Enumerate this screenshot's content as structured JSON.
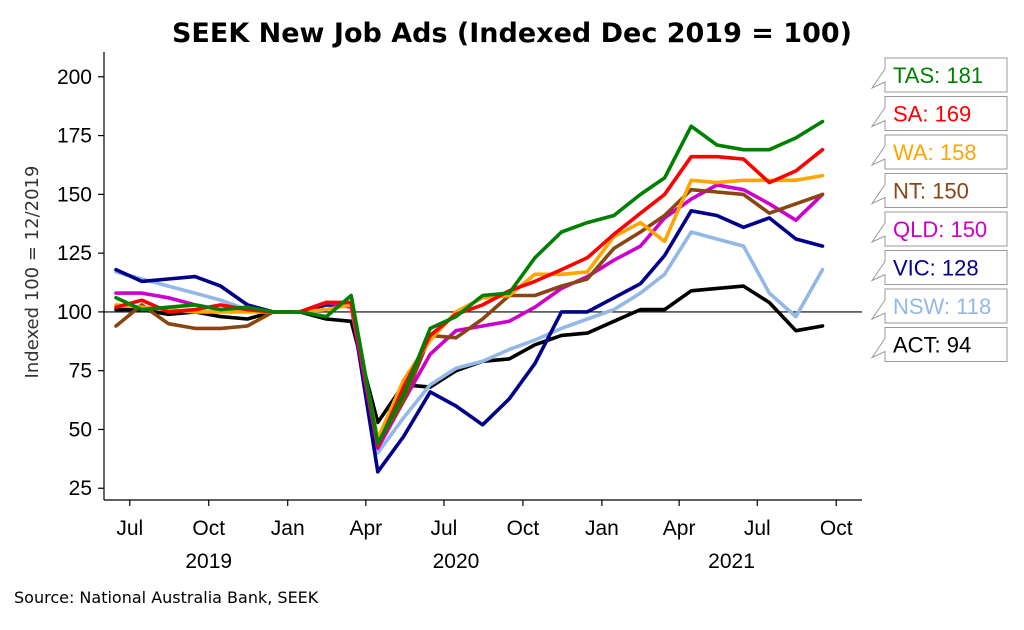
{
  "chart_data": {
    "type": "line",
    "title": "SEEK New Job Ads (Indexed Dec 2019 = 100)",
    "ylabel": "Indexed 100 = 12/2019",
    "ylim": [
      20,
      208
    ],
    "yticks": [
      25,
      50,
      75,
      100,
      125,
      150,
      175,
      200
    ],
    "x_range": [
      "2019-06-01",
      "2021-10-31"
    ],
    "x_ticks": [
      {
        "date": "2019-07-01",
        "label": "Jul"
      },
      {
        "date": "2019-10-01",
        "label": "Oct"
      },
      {
        "date": "2020-01-01",
        "label": "Jan"
      },
      {
        "date": "2020-04-01",
        "label": "Apr"
      },
      {
        "date": "2020-07-01",
        "label": "Jul"
      },
      {
        "date": "2020-10-01",
        "label": "Oct"
      },
      {
        "date": "2021-01-01",
        "label": "Jan"
      },
      {
        "date": "2021-04-01",
        "label": "Apr"
      },
      {
        "date": "2021-07-01",
        "label": "Jul"
      },
      {
        "date": "2021-10-01",
        "label": "Oct"
      }
    ],
    "years": [
      {
        "date": "2019-10-01",
        "label": "2019"
      },
      {
        "date": "2020-07-15",
        "label": "2020"
      },
      {
        "date": "2021-06-01",
        "label": "2021"
      }
    ],
    "reference_line": 100,
    "dates": [
      "2019-06",
      "2019-07",
      "2019-08",
      "2019-09",
      "2019-10",
      "2019-11",
      "2019-12",
      "2020-01",
      "2020-02",
      "2020-03",
      "2020-04",
      "2020-05",
      "2020-06",
      "2020-07",
      "2020-08",
      "2020-09",
      "2020-10",
      "2020-11",
      "2020-12",
      "2021-01",
      "2021-02",
      "2021-03",
      "2021-04",
      "2021-05",
      "2021-06",
      "2021-07",
      "2021-08",
      "2021-09"
    ],
    "series": [
      {
        "name": "TAS",
        "color": "#008000",
        "values": [
          106,
          101,
          102,
          103,
          101,
          102,
          100,
          100,
          98,
          107,
          44,
          65,
          93,
          98,
          107,
          108,
          123,
          134,
          138,
          141,
          150,
          157,
          179,
          171,
          169,
          169,
          174,
          181
        ]
      },
      {
        "name": "SA",
        "color": "#ff0000",
        "values": [
          102,
          105,
          100,
          101,
          103,
          101,
          100,
          100,
          104,
          104,
          43,
          68,
          90,
          99,
          103,
          109,
          113,
          118,
          123,
          133,
          142,
          150,
          166,
          166,
          165,
          155,
          160,
          169
        ]
      },
      {
        "name": "WA",
        "color": "#ffa500",
        "values": [
          103,
          102,
          101,
          100,
          100,
          100,
          100,
          100,
          101,
          103,
          46,
          71,
          88,
          100,
          106,
          107,
          116,
          116,
          117,
          132,
          138,
          130,
          156,
          155,
          156,
          156,
          156,
          158
        ]
      },
      {
        "name": "NT",
        "color": "#8b4513",
        "values": [
          94,
          103,
          95,
          93,
          93,
          94,
          100,
          100,
          104,
          104,
          44,
          62,
          90,
          89,
          97,
          107,
          107,
          111,
          114,
          127,
          134,
          141,
          152,
          151,
          150,
          142,
          146,
          150
        ]
      },
      {
        "name": "QLD",
        "color": "#cc00cc",
        "values": [
          108,
          108,
          106,
          103,
          101,
          101,
          100,
          100,
          104,
          102,
          42,
          62,
          82,
          92,
          94,
          96,
          102,
          110,
          115,
          122,
          128,
          140,
          148,
          154,
          152,
          146,
          139,
          150
        ]
      },
      {
        "name": "VIC",
        "color": "#00008b",
        "values": [
          118,
          113,
          114,
          115,
          111,
          103,
          100,
          100,
          103,
          103,
          32,
          47,
          66,
          60,
          52,
          63,
          78,
          100,
          100,
          106,
          112,
          124,
          143,
          141,
          136,
          140,
          131,
          128
        ]
      },
      {
        "name": "NSW",
        "color": "#93b8e6",
        "values": [
          117,
          114,
          111,
          108,
          105,
          101,
          100,
          100,
          103,
          103,
          40,
          55,
          69,
          76,
          79,
          84,
          88,
          93,
          97,
          101,
          108,
          116,
          134,
          131,
          128,
          108,
          98,
          118
        ]
      },
      {
        "name": "ACT",
        "color": "#000000",
        "values": [
          101,
          101,
          99,
          100,
          98,
          97,
          100,
          100,
          97,
          96,
          53,
          69,
          68,
          75,
          79,
          80,
          86,
          90,
          91,
          96,
          101,
          101,
          109,
          110,
          111,
          104,
          92,
          94
        ]
      }
    ],
    "legend": [
      {
        "text": "TAS: 181",
        "color": "#008000",
        "value": 181
      },
      {
        "text": "SA: 169",
        "color": "#ff0000",
        "value": 169
      },
      {
        "text": "WA: 158",
        "color": "#ffa500",
        "value": 158
      },
      {
        "text": "NT: 150",
        "color": "#8b4513",
        "value": 150
      },
      {
        "text": "QLD: 150",
        "color": "#cc00cc",
        "value": 150
      },
      {
        "text": "VIC: 128",
        "color": "#00008b",
        "value": 128
      },
      {
        "text": "NSW: 118",
        "color": "#93b8e6",
        "value": 118
      },
      {
        "text": "ACT: 94",
        "color": "#000000",
        "value": 94
      }
    ]
  },
  "source": "Source: National Australia Bank, SEEK"
}
